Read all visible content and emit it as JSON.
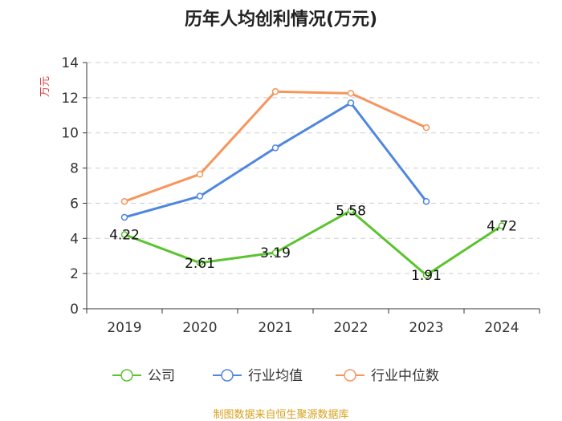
{
  "chart_data": {
    "type": "line",
    "title": "历年人均创利情况(万元)",
    "ylabel": "万元",
    "xlabel": "",
    "categories": [
      "2019",
      "2020",
      "2021",
      "2022",
      "2023",
      "2024"
    ],
    "ylim": [
      0,
      14
    ],
    "yticks": [
      0,
      2,
      4,
      6,
      8,
      10,
      12,
      14
    ],
    "grid": true,
    "legend_position": "bottom-center",
    "series": [
      {
        "name": "公司",
        "color": "#5ac42f",
        "values": [
          4.22,
          2.61,
          3.19,
          5.58,
          1.91,
          4.72
        ],
        "show_labels": true,
        "labels": [
          "4.22",
          "2.61",
          "3.19",
          "5.58",
          "1.91",
          "4.72"
        ]
      },
      {
        "name": "行业均值",
        "color": "#4f86e0",
        "values": [
          5.2,
          6.4,
          9.15,
          11.7,
          6.1,
          null
        ],
        "show_labels": false
      },
      {
        "name": "行业中位数",
        "color": "#f5965c",
        "values": [
          6.1,
          7.65,
          12.35,
          12.25,
          10.3,
          null
        ],
        "show_labels": false
      }
    ]
  },
  "source": {
    "text": "制图数据来自恒生聚源数据库",
    "color": "#d6a11e"
  },
  "axis_label_color": "#e03a3a"
}
